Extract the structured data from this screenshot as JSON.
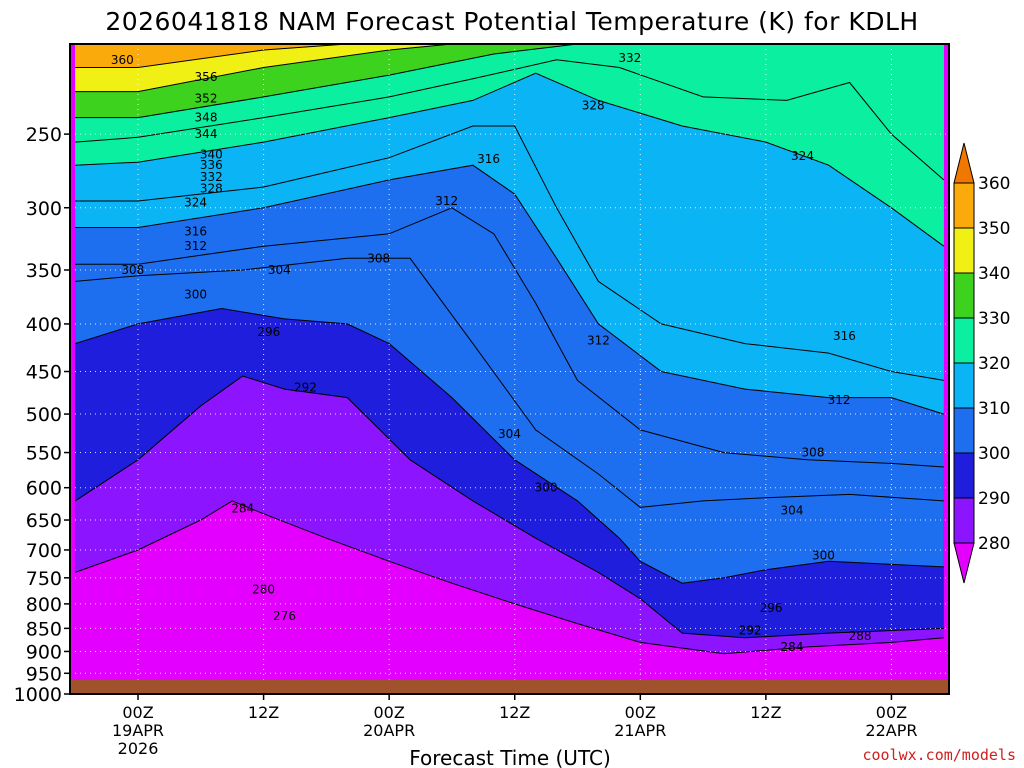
{
  "chart_data": {
    "type": "heatmap",
    "title": "2026041818 NAM Forecast Potential Temperature (K) for KDLH",
    "xlabel": "Forecast Time (UTC)",
    "ylabel": "",
    "credit": "coolwx.com/models",
    "y_ticks": [
      "250",
      "300",
      "350",
      "400",
      "450",
      "500",
      "550",
      "600",
      "650",
      "700",
      "750",
      "800",
      "850",
      "900",
      "950",
      "1000"
    ],
    "y_tick_values": [
      250,
      300,
      350,
      400,
      450,
      500,
      550,
      600,
      650,
      700,
      750,
      800,
      850,
      900,
      950,
      1000
    ],
    "ylim": [
      200,
      1000
    ],
    "xlim_hours": [
      -6.5,
      77.5
    ],
    "x_ticks": [
      {
        "hour": 0,
        "line1": "00Z",
        "line2": "19APR",
        "line3": "2026"
      },
      {
        "hour": 12,
        "line1": "12Z",
        "line2": "",
        "line3": ""
      },
      {
        "hour": 24,
        "line1": "00Z",
        "line2": "20APR",
        "line3": ""
      },
      {
        "hour": 36,
        "line1": "12Z",
        "line2": "",
        "line3": ""
      },
      {
        "hour": 48,
        "line1": "00Z",
        "line2": "21APR",
        "line3": ""
      },
      {
        "hour": 60,
        "line1": "12Z",
        "line2": "",
        "line3": ""
      },
      {
        "hour": 72,
        "line1": "00Z",
        "line2": "22APR",
        "line3": ""
      }
    ],
    "colorbar": {
      "levels": [
        280,
        290,
        300,
        310,
        320,
        330,
        340,
        350,
        360
      ],
      "labels": [
        "280",
        "290",
        "300",
        "310",
        "320",
        "330",
        "340",
        "350",
        "360"
      ],
      "colors": [
        "#e400ff",
        "#8c14ff",
        "#1e1edc",
        "#1e6ef0",
        "#0ab4f5",
        "#0af0a0",
        "#3cd21e",
        "#f0f014",
        "#faaa0a",
        "#f07800"
      ]
    },
    "ground_color": "#a0522d",
    "series": [
      {
        "name": "theta-284",
        "values": [
          [
            -6,
            740
          ],
          [
            0,
            700
          ],
          [
            6,
            650
          ],
          [
            9,
            620
          ],
          [
            12,
            640
          ],
          [
            18,
            680
          ],
          [
            24,
            720
          ],
          [
            30,
            760
          ],
          [
            36,
            800
          ],
          [
            42,
            840
          ],
          [
            48,
            880
          ],
          [
            56,
            905
          ],
          [
            64,
            890
          ],
          [
            72,
            880
          ],
          [
            77,
            870
          ]
        ]
      },
      {
        "name": "theta-292",
        "values": [
          [
            -6,
            620
          ],
          [
            0,
            560
          ],
          [
            6,
            490
          ],
          [
            10,
            455
          ],
          [
            14,
            470
          ],
          [
            20,
            480
          ],
          [
            26,
            560
          ],
          [
            32,
            620
          ],
          [
            38,
            680
          ],
          [
            44,
            740
          ],
          [
            48,
            790
          ],
          [
            52,
            860
          ],
          [
            58,
            870
          ],
          [
            66,
            860
          ],
          [
            77,
            850
          ]
        ]
      },
      {
        "name": "theta-300",
        "values": [
          [
            -6,
            420
          ],
          [
            0,
            400
          ],
          [
            8,
            385
          ],
          [
            14,
            395
          ],
          [
            20,
            400
          ],
          [
            24,
            420
          ],
          [
            30,
            480
          ],
          [
            36,
            560
          ],
          [
            42,
            620
          ],
          [
            46,
            680
          ],
          [
            48,
            720
          ],
          [
            52,
            760
          ],
          [
            56,
            750
          ],
          [
            60,
            735
          ],
          [
            66,
            720
          ],
          [
            77,
            730
          ]
        ]
      },
      {
        "name": "theta-304",
        "values": [
          [
            -6,
            360
          ],
          [
            0,
            355
          ],
          [
            10,
            350
          ],
          [
            20,
            340
          ],
          [
            26,
            340
          ],
          [
            32,
            420
          ],
          [
            38,
            520
          ],
          [
            44,
            580
          ],
          [
            48,
            630
          ],
          [
            54,
            620
          ],
          [
            60,
            615
          ],
          [
            68,
            610
          ],
          [
            77,
            620
          ]
        ]
      },
      {
        "name": "theta-308",
        "values": [
          [
            -6,
            345
          ],
          [
            0,
            345
          ],
          [
            12,
            330
          ],
          [
            24,
            320
          ],
          [
            30,
            300
          ],
          [
            34,
            320
          ],
          [
            38,
            380
          ],
          [
            42,
            460
          ],
          [
            48,
            520
          ],
          [
            56,
            550
          ],
          [
            64,
            560
          ],
          [
            72,
            565
          ],
          [
            77,
            570
          ]
        ]
      },
      {
        "name": "theta-312",
        "values": [
          [
            -6,
            315
          ],
          [
            0,
            315
          ],
          [
            12,
            300
          ],
          [
            24,
            280
          ],
          [
            32,
            270
          ],
          [
            36,
            290
          ],
          [
            40,
            340
          ],
          [
            44,
            400
          ],
          [
            50,
            450
          ],
          [
            58,
            470
          ],
          [
            66,
            480
          ],
          [
            72,
            480
          ],
          [
            77,
            500
          ]
        ]
      },
      {
        "name": "theta-316",
        "values": [
          [
            -6,
            295
          ],
          [
            0,
            295
          ],
          [
            12,
            285
          ],
          [
            24,
            265
          ],
          [
            32,
            245
          ],
          [
            36,
            245
          ],
          [
            40,
            300
          ],
          [
            44,
            360
          ],
          [
            50,
            400
          ],
          [
            58,
            420
          ],
          [
            66,
            430
          ],
          [
            72,
            450
          ],
          [
            77,
            460
          ]
        ]
      },
      {
        "name": "theta-324",
        "values": [
          [
            -6,
            270
          ],
          [
            0,
            268
          ],
          [
            12,
            255
          ],
          [
            24,
            240
          ],
          [
            32,
            230
          ],
          [
            38,
            215
          ],
          [
            44,
            230
          ],
          [
            52,
            245
          ],
          [
            60,
            255
          ],
          [
            66,
            270
          ],
          [
            72,
            300
          ],
          [
            77,
            330
          ]
        ]
      },
      {
        "name": "theta-328",
        "values": [
          [
            -6,
            255
          ],
          [
            0,
            252
          ],
          [
            12,
            240
          ],
          [
            24,
            228
          ],
          [
            32,
            218
          ],
          [
            40,
            208
          ],
          [
            46,
            212
          ],
          [
            54,
            228
          ],
          [
            62,
            230
          ],
          [
            68,
            220
          ],
          [
            72,
            250
          ],
          [
            77,
            280
          ]
        ]
      },
      {
        "name": "theta-332",
        "values": [
          [
            -6,
            240
          ],
          [
            0,
            240
          ],
          [
            12,
            228
          ],
          [
            24,
            216
          ],
          [
            34,
            205
          ],
          [
            42,
            200
          ]
        ]
      },
      {
        "name": "theta-344",
        "values": [
          [
            -6,
            225
          ],
          [
            0,
            225
          ],
          [
            12,
            212
          ],
          [
            24,
            203
          ],
          [
            30,
            200
          ]
        ]
      },
      {
        "name": "theta-352",
        "values": [
          [
            -6,
            212
          ],
          [
            0,
            212
          ],
          [
            12,
            203
          ],
          [
            20,
            200
          ]
        ]
      }
    ],
    "contour_labels": [
      {
        "text": "360",
        "hour": -1.5,
        "p": 208
      },
      {
        "text": "356",
        "hour": 6.5,
        "p": 217
      },
      {
        "text": "352",
        "hour": 6.5,
        "p": 229
      },
      {
        "text": "348",
        "hour": 6.5,
        "p": 240
      },
      {
        "text": "344",
        "hour": 6.5,
        "p": 250
      },
      {
        "text": "340",
        "hour": 7,
        "p": 263
      },
      {
        "text": "336",
        "hour": 7,
        "p": 270
      },
      {
        "text": "332",
        "hour": 7,
        "p": 278
      },
      {
        "text": "328",
        "hour": 7,
        "p": 286
      },
      {
        "text": "324",
        "hour": 5.5,
        "p": 296
      },
      {
        "text": "316",
        "hour": 5.5,
        "p": 318
      },
      {
        "text": "312",
        "hour": 5.5,
        "p": 330
      },
      {
        "text": "308",
        "hour": -0.5,
        "p": 350
      },
      {
        "text": "304",
        "hour": 13.5,
        "p": 350
      },
      {
        "text": "300",
        "hour": 5.5,
        "p": 372
      },
      {
        "text": "296",
        "hour": 12.5,
        "p": 408
      },
      {
        "text": "292",
        "hour": 16,
        "p": 468
      },
      {
        "text": "284",
        "hour": 10,
        "p": 632
      },
      {
        "text": "280",
        "hour": 12,
        "p": 772
      },
      {
        "text": "276",
        "hour": 14,
        "p": 824
      },
      {
        "text": "308",
        "hour": 23,
        "p": 340
      },
      {
        "text": "312",
        "hour": 29.5,
        "p": 295
      },
      {
        "text": "316",
        "hour": 33.5,
        "p": 266
      },
      {
        "text": "332",
        "hour": 47,
        "p": 207
      },
      {
        "text": "328",
        "hour": 43.5,
        "p": 233
      },
      {
        "text": "324",
        "hour": 63.5,
        "p": 264
      },
      {
        "text": "312",
        "hour": 44,
        "p": 417
      },
      {
        "text": "316",
        "hour": 67.5,
        "p": 412
      },
      {
        "text": "312",
        "hour": 67,
        "p": 483
      },
      {
        "text": "308",
        "hour": 64.5,
        "p": 550
      },
      {
        "text": "304",
        "hour": 35.5,
        "p": 525
      },
      {
        "text": "300",
        "hour": 39,
        "p": 600
      },
      {
        "text": "304",
        "hour": 62.5,
        "p": 635
      },
      {
        "text": "300",
        "hour": 65.5,
        "p": 710
      },
      {
        "text": "296",
        "hour": 60.5,
        "p": 808
      },
      {
        "text": "292",
        "hour": 58.5,
        "p": 855
      },
      {
        "text": "288",
        "hour": 69,
        "p": 866
      },
      {
        "text": "284",
        "hour": 62.5,
        "p": 890
      }
    ]
  }
}
